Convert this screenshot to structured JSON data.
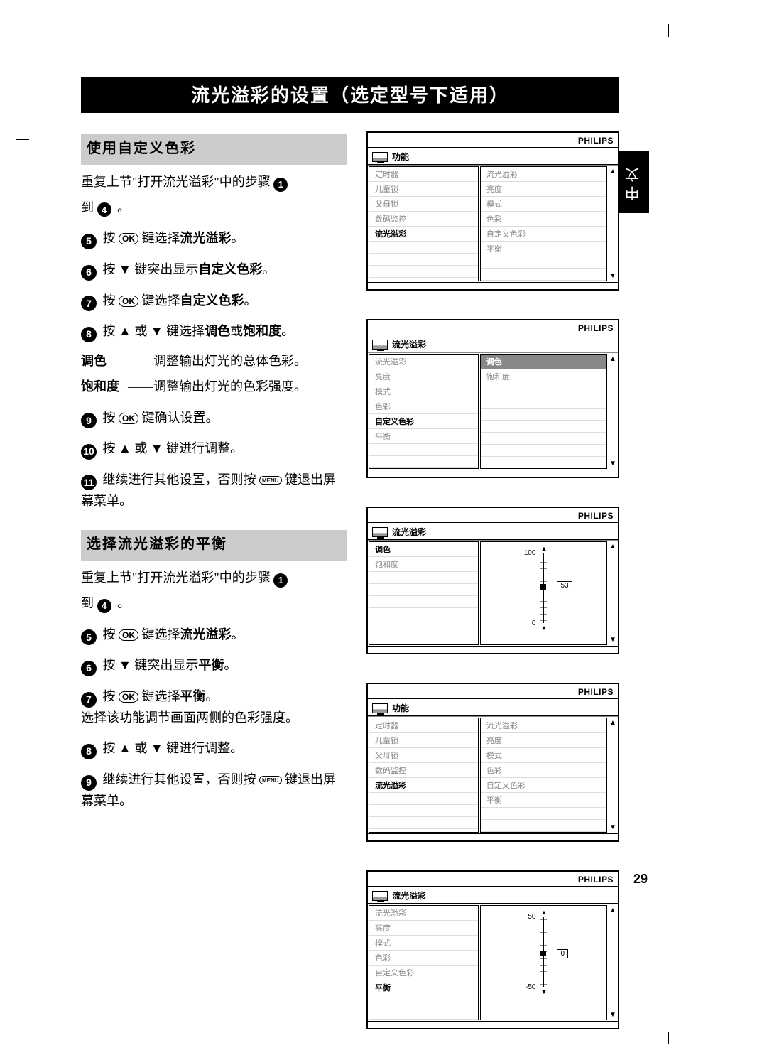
{
  "side_tab": "中文",
  "page_number": "29",
  "title": "流光溢彩的设置（选定型号下适用）",
  "sectionA": {
    "heading": "使用自定义色彩",
    "intro_a": "重复上节\"打开流光溢彩\"中的步骤",
    "intro_b": "到",
    "intro_c": "。",
    "badge1": "1",
    "badge4": "4",
    "s5": {
      "n": "5",
      "a": "按 ",
      "mid": " 键选择",
      "bold": "流光溢彩",
      "end": "。"
    },
    "s6": {
      "n": "6",
      "a": "按 ▼ 键突出显示",
      "bold": "自定义色彩",
      "end": "。"
    },
    "s7": {
      "n": "7",
      "a": "按 ",
      "mid": " 键选择",
      "bold": "自定义色彩",
      "end": "。"
    },
    "s8": {
      "n": "8",
      "a": "按 ▲ 或 ▼ 键选择",
      "b1": "调色",
      "or": "或",
      "b2": "饱和度",
      "end": "。"
    },
    "def": {
      "t1": "调色",
      "d1": "——调整输出灯光的总体色彩。",
      "t2": "饱和度",
      "d2": "——调整输出灯光的色彩强度。"
    },
    "s9": {
      "n": "9",
      "a": "按 ",
      "mid": " 键确认设置。"
    },
    "s10": {
      "n": "10",
      "a": "按 ▲ 或 ▼ 键进行调整。"
    },
    "s11": {
      "n": "11",
      "a": "继续进行其他设置，否则按 ",
      "b": " 键退出屏幕菜单。"
    }
  },
  "sectionB": {
    "heading": "选择流光溢彩的平衡",
    "intro_a": "重复上节\"打开流光溢彩\"中的步骤",
    "intro_b": "到",
    "intro_c": "。",
    "s5": {
      "n": "5",
      "a": "按 ",
      "mid": " 键选择",
      "bold": "流光溢彩",
      "end": "。"
    },
    "s6": {
      "n": "6",
      "a": "按 ▼ 键突出显示",
      "bold": "平衡",
      "end": "。"
    },
    "s7": {
      "n": "7",
      "a": "按 ",
      "mid": " 键选择",
      "bold": "平衡",
      "end": "。",
      "sub": "选择该功能调节画面两侧的色彩强度。"
    },
    "s8": {
      "n": "8",
      "a": "按 ▲ 或 ▼ 键进行调整。"
    },
    "s9": {
      "n": "9",
      "a": "继续进行其他设置，否则按 ",
      "b": " 键退出屏幕菜单。"
    }
  },
  "logo": "PHILIPS",
  "ok": "OK",
  "menu_btn": "MENU",
  "panel1": {
    "title": "功能",
    "left": [
      "定时器",
      "儿童锁",
      "父母锁",
      "数码监控",
      "流光溢彩"
    ],
    "left_sel_idx": 4,
    "right": [
      "流光溢彩",
      "亮度",
      "模式",
      "色彩",
      "自定义色彩",
      "平衡"
    ]
  },
  "panel2": {
    "title": "流光溢彩",
    "left": [
      "流光溢彩",
      "亮度",
      "模式",
      "色彩",
      "自定义色彩",
      "平衡"
    ],
    "left_sel_idx": 4,
    "right": [
      "调色",
      "饱和度"
    ],
    "right_sel_idx": 0
  },
  "panel3": {
    "title": "流光溢彩",
    "left": [
      "调色",
      "饱和度"
    ],
    "left_sel_idx": 0,
    "slider": {
      "top_label": "100",
      "bot_label": "0",
      "value": "53",
      "thumb_pos_pct": 44,
      "val_box_top_pct": 40
    }
  },
  "panel4": {
    "title": "功能",
    "left": [
      "定时器",
      "儿童锁",
      "父母锁",
      "数码监控",
      "流光溢彩"
    ],
    "left_sel_idx": 4,
    "right": [
      "流光溢彩",
      "亮度",
      "模式",
      "色彩",
      "自定义色彩",
      "平衡"
    ]
  },
  "panel5": {
    "title": "流光溢彩",
    "left": [
      "流光溢彩",
      "亮度",
      "模式",
      "色彩",
      "自定义色彩",
      "平衡"
    ],
    "left_sel_idx": 5,
    "slider": {
      "top_label": "50",
      "bot_label": "-50",
      "value": "0",
      "thumb_pos_pct": 48,
      "val_box_top_pct": 46
    }
  }
}
